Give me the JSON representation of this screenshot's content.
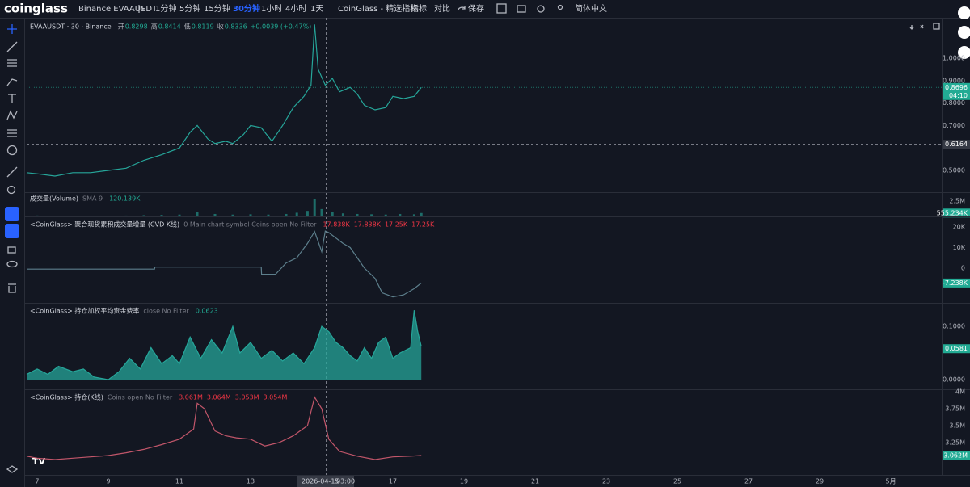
{
  "toolbar": {
    "logo": "coinglass",
    "symbol": "Binance EVAAUSDT",
    "intervals": [
      "1分钟",
      "5分钟",
      "15分钟",
      "30分钟",
      "1小时",
      "4小时",
      "1天"
    ],
    "active_interval": 3,
    "items": [
      "CoinGlass - 精选指标",
      "指标",
      "对比",
      "保存",
      "简体中文"
    ]
  },
  "chart": {
    "xlim": [
      6.705,
      32.43
    ],
    "xticks": [
      7,
      9,
      11,
      13,
      17,
      19,
      21,
      23,
      25,
      27,
      29,
      {
        "value": 31,
        "label": "5月"
      }
    ],
    "crosshair_time": [
      "2026-04-15",
      "03:00"
    ],
    "panes": [
      {
        "type": "line",
        "title": "EVAAUSDT · 30 · Binance",
        "ohlc": [
          {
            "label": "开",
            "value": "0.8298"
          },
          {
            "label": "高",
            "value": "0.8414"
          },
          {
            "label": "低",
            "value": "0.8119"
          },
          {
            "label": "收",
            "value": "0.8336"
          }
        ],
        "change": "+0.0039 (+0.47%)",
        "color": "#26a69a",
        "ylim": [
          0.403,
          1.18
        ],
        "yticks": [
          {
            "value": 1.0,
            "label": "1.0000"
          },
          {
            "value": 0.9,
            "label": "0.9000"
          },
          {
            "value": 0.8,
            "label": "0.8000"
          },
          {
            "value": 0.7,
            "label": "0.7000"
          },
          {
            "value": 0.5,
            "label": "0.5000"
          }
        ],
        "badges": [
          {
            "value": 0.8696,
            "label": "0.8696",
            "sub": "04:10",
            "color": "#22ab94"
          },
          {
            "value": 0.6164,
            "label": "0.6164",
            "color": "#363a45"
          }
        ],
        "x": [
          6.705,
          7,
          7.5,
          8,
          8.5,
          9,
          9.5,
          10,
          10.5,
          11,
          11.3,
          11.5,
          11.8,
          12,
          12.3,
          12.5,
          12.8,
          13,
          13.3,
          13.6,
          13.9,
          14.2,
          14.5,
          14.7,
          14.8,
          14.9,
          15.1,
          15.3,
          15.5,
          15.8,
          16,
          16.2,
          16.5,
          16.8,
          17,
          17.3,
          17.6,
          17.8
        ],
        "values": [
          0.49,
          0.485,
          0.475,
          0.49,
          0.49,
          0.5,
          0.51,
          0.545,
          0.57,
          0.6,
          0.67,
          0.7,
          0.64,
          0.62,
          0.63,
          0.62,
          0.66,
          0.7,
          0.69,
          0.63,
          0.7,
          0.78,
          0.83,
          0.88,
          1.15,
          0.95,
          0.88,
          0.91,
          0.85,
          0.87,
          0.84,
          0.79,
          0.77,
          0.78,
          0.83,
          0.82,
          0.83,
          0.87
        ]
      },
      {
        "type": "bars",
        "name": "成交量(Volume)",
        "params": "SMA 9",
        "legend_values": [
          "120.139K"
        ],
        "color": "#26a69a",
        "value_color": "#22ab94",
        "ylim": [
          0,
          3950000
        ],
        "yticks": [
          {
            "value": 2500000,
            "label": "2.5M"
          }
        ],
        "badges": [
          {
            "value": 555234,
            "label": "555.234K",
            "color": "#22ab94"
          }
        ],
        "x": [
          7,
          7.5,
          8,
          8.5,
          9,
          9.5,
          10,
          10.5,
          11,
          11.5,
          12,
          12.5,
          13,
          13.5,
          14,
          14.3,
          14.6,
          14.8,
          15,
          15.3,
          15.6,
          16,
          16.4,
          16.8,
          17.2,
          17.6,
          17.8
        ],
        "values": [
          150000,
          120000,
          100000,
          130000,
          120000,
          140000,
          200000,
          250000,
          300000,
          700000,
          400000,
          300000,
          350000,
          300000,
          400000,
          600000,
          900000,
          2800000,
          1200000,
          700000,
          500000,
          400000,
          350000,
          300000,
          400000,
          350000,
          555234
        ]
      },
      {
        "type": "line",
        "name": "<CoinGlass> 聚合现货累积成交量增量 (CVD K线)",
        "params": "0 Main chart symbol Coins open No Filter",
        "legend_values": [
          "17.838K",
          "17.838K",
          "17.25K",
          "17.25K"
        ],
        "color": "#5d7f8c",
        "value_color": "#f23645",
        "ylim": [
          -16900,
          25100
        ],
        "yticks": [
          {
            "value": 20000,
            "label": "20K"
          },
          {
            "value": 10000,
            "label": "10K"
          },
          0
        ],
        "badges": [
          {
            "value": -7238,
            "label": "-7.238K",
            "color": "#22ab94"
          }
        ],
        "x": [
          6.705,
          8,
          10.3,
          10.31,
          13.3,
          13.31,
          13.7,
          14,
          14.3,
          14.6,
          14.8,
          15,
          15.1,
          15.2,
          15.6,
          15.8,
          16.2,
          16.5,
          16.7,
          17,
          17.3,
          17.6,
          17.8
        ],
        "values": [
          -500,
          -500,
          -500,
          500,
          500,
          -3000,
          -3000,
          2500,
          5000,
          12000,
          17800,
          8000,
          18000,
          17250,
          12000,
          10000,
          0,
          -5000,
          -12000,
          -14000,
          -13000,
          -10000,
          -7238
        ]
      },
      {
        "type": "area",
        "name": "<CoinGlass> 持仓加权平均资金费率",
        "params": "close No Filter",
        "legend_values": [
          "0.0623"
        ],
        "color": "#26a69a",
        "value_color": "#22ab94",
        "ylim": [
          -0.018,
          0.144
        ],
        "yticks": [
          {
            "value": 0.1,
            "label": "0.1000"
          },
          {
            "value": 0,
            "label": "0.0000"
          }
        ],
        "badges": [
          {
            "value": 0.0581,
            "label": "0.0581",
            "color": "#22ab94"
          }
        ],
        "x": [
          6.705,
          7,
          7.3,
          7.6,
          8,
          8.3,
          8.6,
          9,
          9.3,
          9.6,
          9.9,
          10.2,
          10.5,
          10.8,
          11,
          11.3,
          11.6,
          11.9,
          12.2,
          12.5,
          12.7,
          13,
          13.3,
          13.6,
          13.9,
          14.2,
          14.5,
          14.8,
          15,
          15.2,
          15.4,
          15.6,
          15.8,
          16,
          16.2,
          16.4,
          16.6,
          16.8,
          17,
          17.2,
          17.5,
          17.6,
          17.7,
          17.8
        ],
        "values": [
          0.01,
          0.02,
          0.01,
          0.025,
          0.015,
          0.02,
          0.005,
          0,
          0.015,
          0.04,
          0.02,
          0.06,
          0.03,
          0.045,
          0.03,
          0.08,
          0.04,
          0.075,
          0.05,
          0.1,
          0.05,
          0.07,
          0.04,
          0.055,
          0.035,
          0.05,
          0.03,
          0.06,
          0.1,
          0.09,
          0.07,
          0.06,
          0.045,
          0.035,
          0.06,
          0.04,
          0.07,
          0.08,
          0.04,
          0.05,
          0.06,
          0.13,
          0.09,
          0.0623
        ]
      },
      {
        "type": "line",
        "name": "<CoinGlass> 持仓(K线)",
        "params": "Coins open No Filter",
        "legend_values": [
          "3.061M",
          "3.064M",
          "3.053M",
          "3.054M"
        ],
        "color": "#c2566a",
        "value_color": "#f23645",
        "ylim": [
          2774000,
          4036000
        ],
        "yticks": [
          {
            "value": 4000000,
            "label": "4M"
          },
          {
            "value": 3750000,
            "label": "3.75M"
          },
          {
            "value": 3500000,
            "label": "3.5M"
          },
          {
            "value": 3250000,
            "label": "3.25M"
          }
        ],
        "badges": [
          {
            "value": 3062000,
            "label": "3.062M",
            "color": "#22ab94"
          }
        ],
        "x": [
          6.705,
          7,
          7.5,
          8,
          8.5,
          9,
          9.5,
          10,
          10.5,
          11,
          11.4,
          11.5,
          11.7,
          12,
          12.3,
          12.6,
          13,
          13.4,
          13.8,
          14.2,
          14.6,
          14.8,
          15,
          15.2,
          15.5,
          16,
          16.5,
          17,
          17.5,
          17.8
        ],
        "values": [
          3050000,
          3020000,
          3000000,
          3020000,
          3040000,
          3060000,
          3100000,
          3150000,
          3220000,
          3300000,
          3450000,
          3830000,
          3750000,
          3420000,
          3350000,
          3320000,
          3300000,
          3200000,
          3250000,
          3350000,
          3500000,
          3920000,
          3750000,
          3300000,
          3120000,
          3050000,
          3000000,
          3040000,
          3050000,
          3060000
        ]
      }
    ]
  }
}
